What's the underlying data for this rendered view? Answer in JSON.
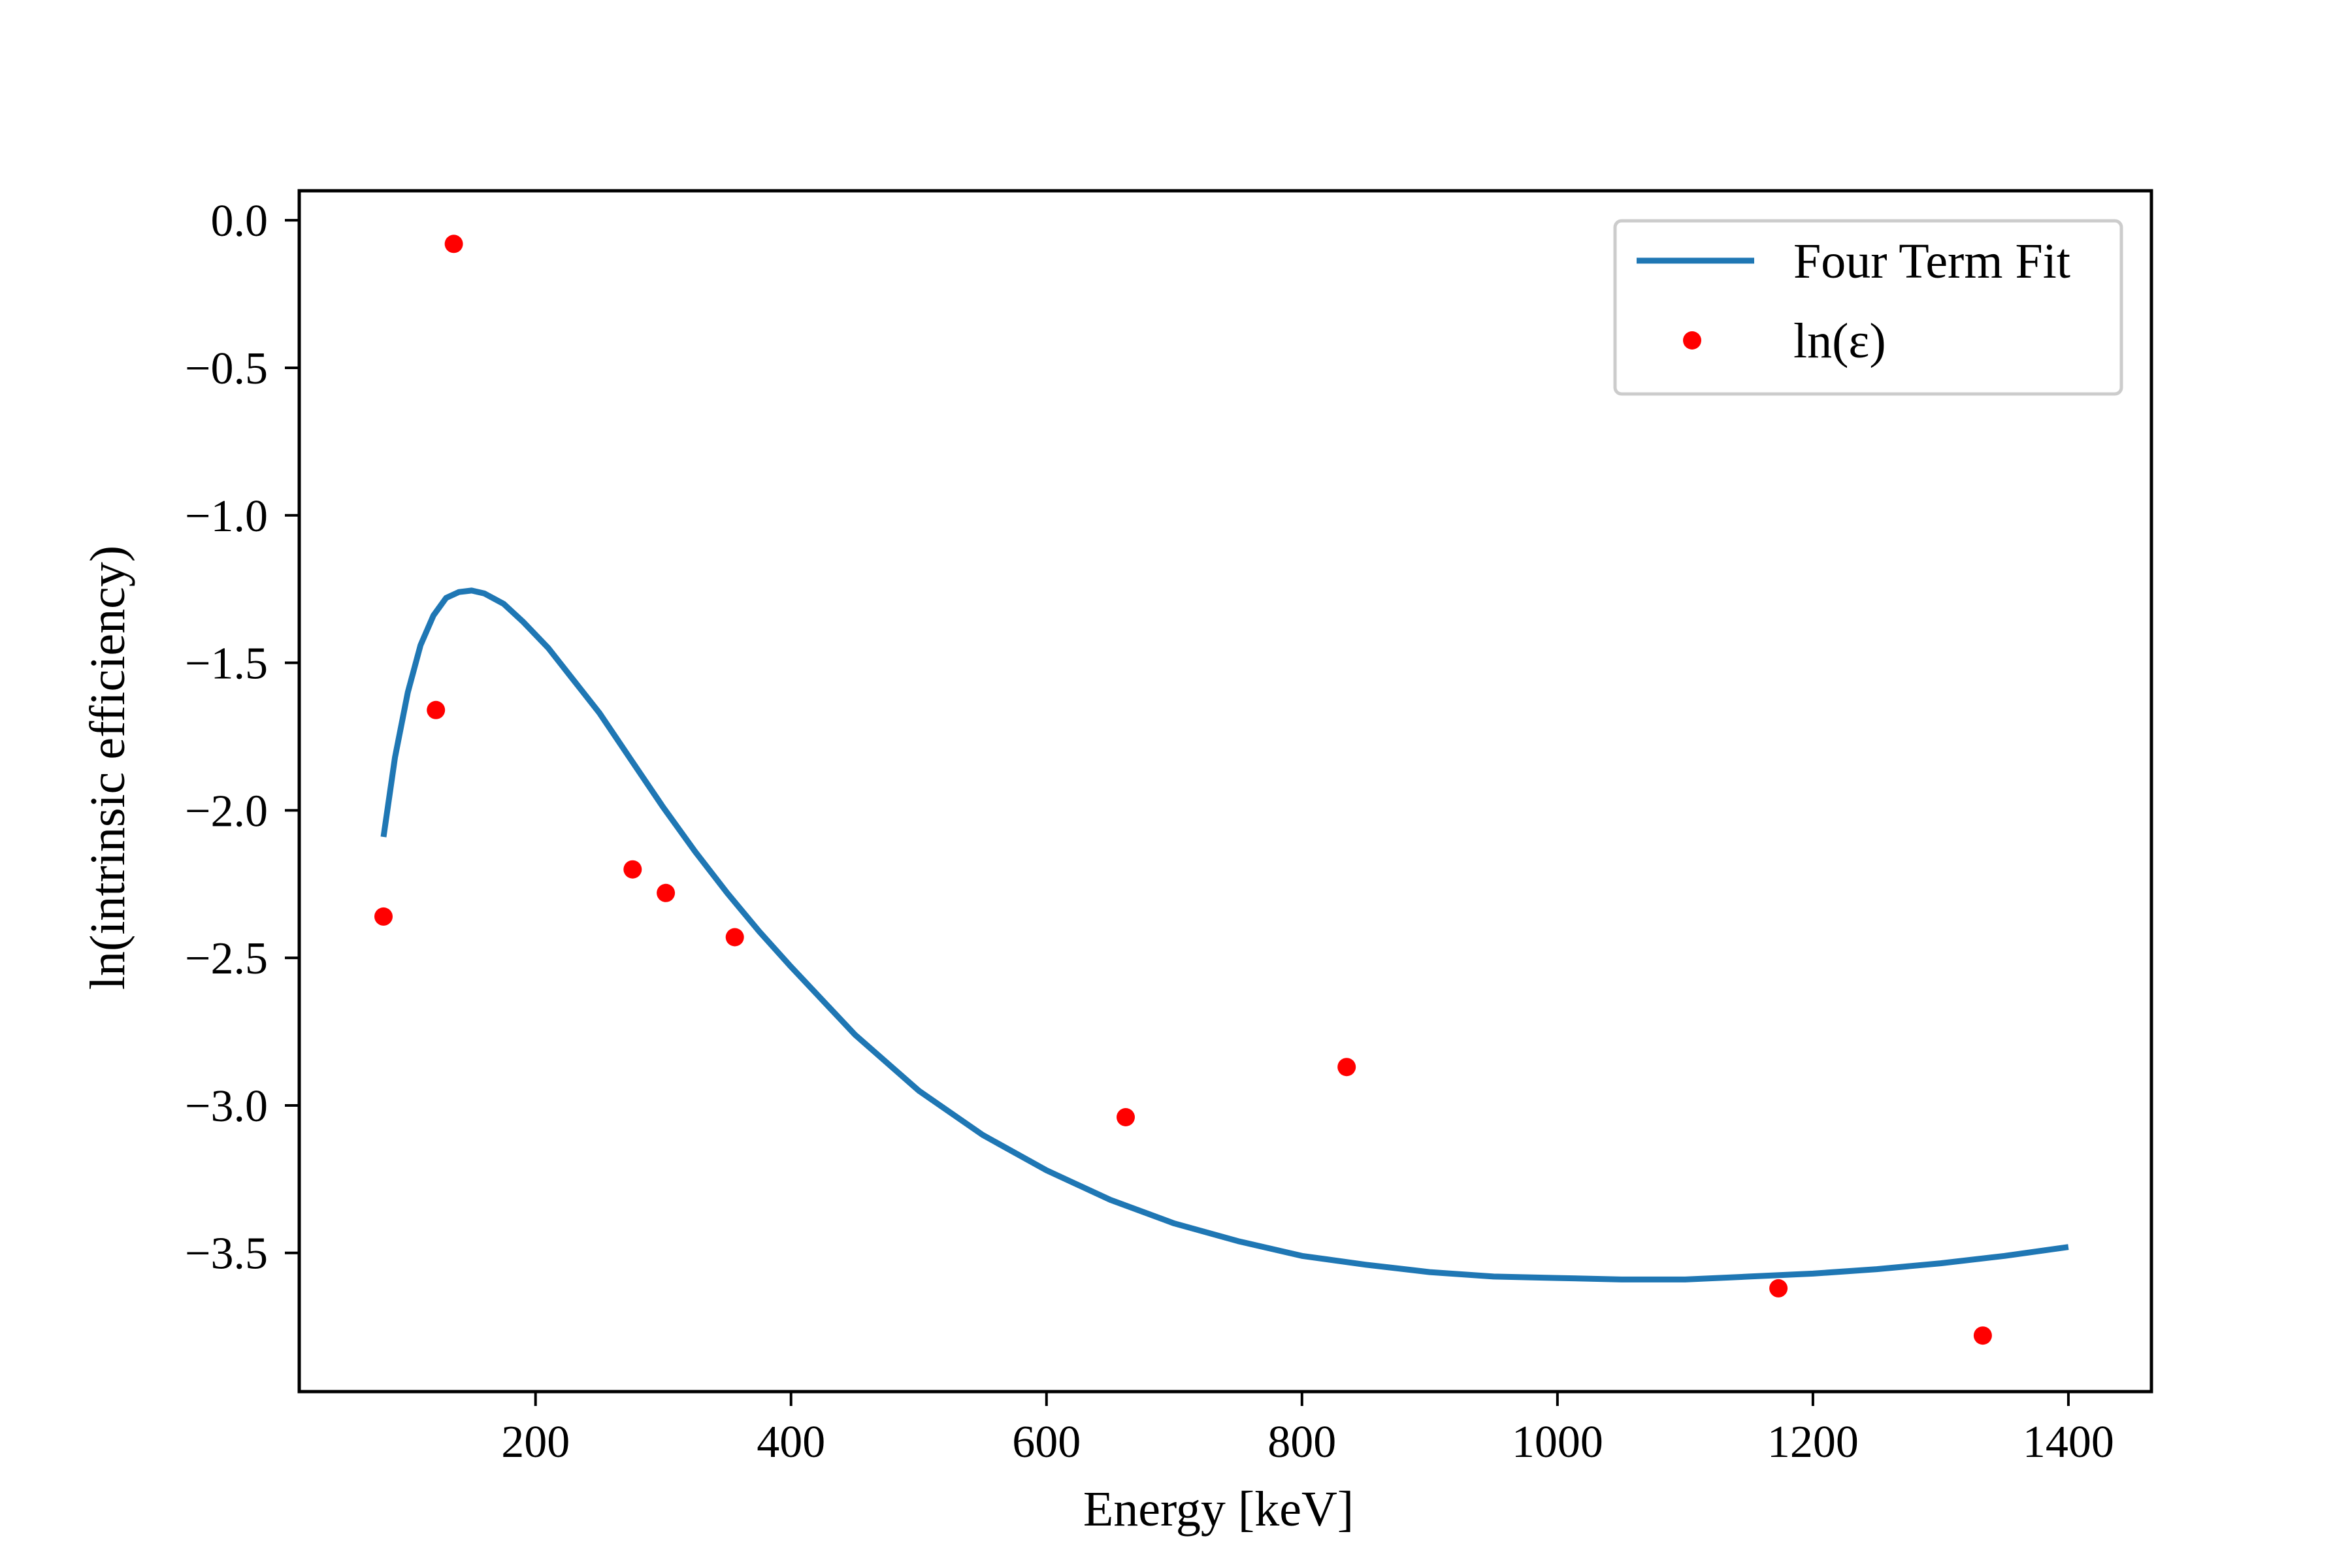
{
  "chart_data": {
    "type": "line",
    "xlabel": "Energy [keV]",
    "ylabel": "ln(intrinsic efficiency)",
    "xlim": [
      15,
      1465
    ],
    "ylim": [
      -3.97,
      0.1
    ],
    "xticks": [
      200,
      400,
      600,
      800,
      1000,
      1200,
      1400
    ],
    "xtick_labels": [
      "200",
      "400",
      "600",
      "800",
      "1000",
      "1200",
      "1400"
    ],
    "yticks": [
      0.0,
      -0.5,
      -1.0,
      -1.5,
      -2.0,
      -2.5,
      -3.0,
      -3.5
    ],
    "ytick_labels": [
      "0.0",
      "−0.5",
      "−1.0",
      "−1.5",
      "−2.0",
      "−2.5",
      "−3.0",
      "−3.5"
    ],
    "grid": false,
    "legend_position": "top-right",
    "series": [
      {
        "name": "Four Term Fit",
        "kind": "line",
        "color": "#1f77b4",
        "x": [
          81,
          90,
          100,
          110,
          120,
          130,
          140,
          150,
          160,
          175,
          190,
          210,
          230,
          250,
          275,
          300,
          325,
          350,
          375,
          400,
          450,
          500,
          550,
          600,
          650,
          700,
          750,
          800,
          850,
          900,
          950,
          1000,
          1050,
          1100,
          1150,
          1200,
          1250,
          1300,
          1350,
          1400
        ],
        "y": [
          -2.09,
          -1.82,
          -1.6,
          -1.44,
          -1.34,
          -1.28,
          -1.26,
          -1.255,
          -1.265,
          -1.3,
          -1.36,
          -1.45,
          -1.56,
          -1.67,
          -1.83,
          -1.99,
          -2.14,
          -2.28,
          -2.41,
          -2.53,
          -2.76,
          -2.95,
          -3.1,
          -3.22,
          -3.32,
          -3.4,
          -3.46,
          -3.51,
          -3.54,
          -3.565,
          -3.58,
          -3.585,
          -3.59,
          -3.59,
          -3.58,
          -3.57,
          -3.555,
          -3.535,
          -3.51,
          -3.48
        ]
      },
      {
        "name": "ln(ε)",
        "kind": "scatter",
        "color": "#ff0000",
        "x": [
          81,
          122,
          136,
          276,
          302,
          356,
          662,
          835,
          1173,
          1333
        ],
        "y": [
          -2.36,
          -1.66,
          -0.08,
          -2.2,
          -2.28,
          -2.43,
          -3.04,
          -2.87,
          -3.62,
          -3.78
        ]
      }
    ]
  }
}
